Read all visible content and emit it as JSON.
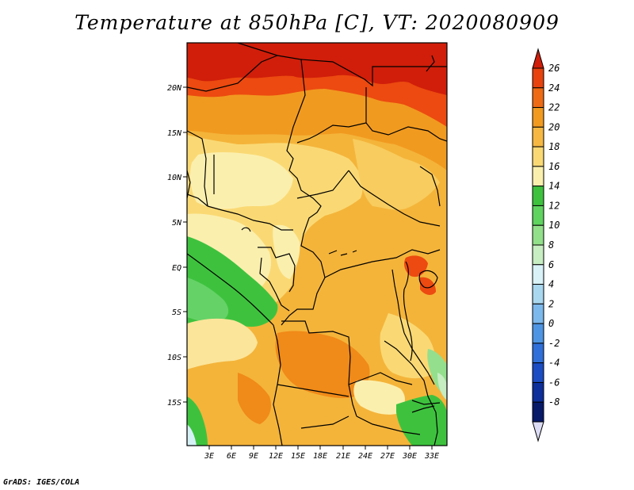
{
  "title": "Temperature at 850hPa [C], VT: 2020080909",
  "credit": "GrADS: IGES/COLA",
  "map": {
    "lat_labels": [
      "20N",
      "15N",
      "10N",
      "5N",
      "EQ",
      "5S",
      "10S",
      "15S"
    ],
    "lon_labels": [
      "3E",
      "6E",
      "9E",
      "12E",
      "15E",
      "18E",
      "21E",
      "24E",
      "27E",
      "30E",
      "33E"
    ]
  },
  "colorbar": {
    "labels": [
      "26",
      "24",
      "22",
      "20",
      "18",
      "16",
      "14",
      "12",
      "10",
      "8",
      "6",
      "4",
      "2",
      "0",
      "-2",
      "-4",
      "-6",
      "-8"
    ],
    "colors": [
      "#d01e0a",
      "#e8420e",
      "#ef6a14",
      "#f29a20",
      "#f6b842",
      "#fad974",
      "#fbefad",
      "#3ec23e",
      "#5fd45f",
      "#92e08a",
      "#c6eec2",
      "#d8f2f7",
      "#a9d7f0",
      "#7cb8ec",
      "#4e95e4",
      "#2f6fda",
      "#1b4cc4",
      "#0c2f9c",
      "#071a6a",
      "#dcdcf5"
    ]
  },
  "zones": [
    {
      "name": "red-north",
      "color": "#d81e0c"
    },
    {
      "name": "orange-red",
      "color": "#ec4a10"
    },
    {
      "name": "orange",
      "color": "#f08416"
    },
    {
      "name": "light-orange",
      "color": "#f2a52a"
    },
    {
      "name": "yellow-orange",
      "color": "#f6be48"
    },
    {
      "name": "yellow",
      "color": "#fbdc7a"
    },
    {
      "name": "pale-yellow",
      "color": "#fbefb0"
    },
    {
      "name": "green",
      "color": "#3ec23e"
    },
    {
      "name": "mid-green",
      "color": "#65d267"
    },
    {
      "name": "light-green",
      "color": "#94df8e"
    },
    {
      "name": "pale-green",
      "color": "#c6ecc2"
    },
    {
      "name": "pale-cyan",
      "color": "#d6f1f6"
    }
  ]
}
